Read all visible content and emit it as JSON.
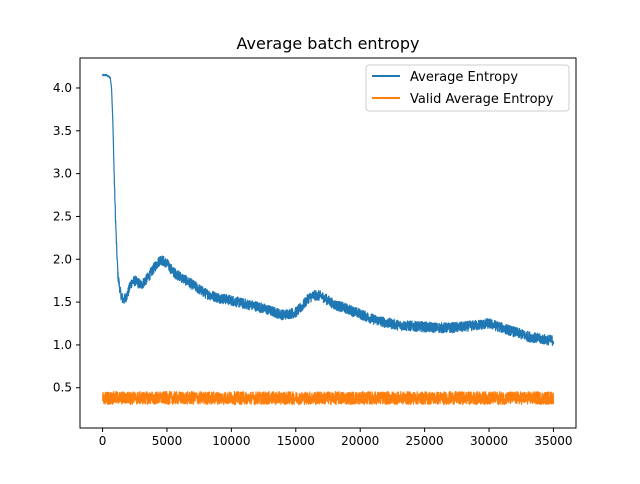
{
  "chart_data": {
    "type": "line",
    "title": "Average batch entropy",
    "xlabel": "",
    "ylabel": "",
    "xlim": [
      -1750,
      36750
    ],
    "ylim": [
      0.03,
      4.35
    ],
    "xticks": [
      0,
      5000,
      10000,
      15000,
      20000,
      25000,
      30000,
      35000
    ],
    "xtick_labels": [
      "0",
      "5000",
      "10000",
      "15000",
      "20000",
      "25000",
      "30000",
      "35000"
    ],
    "yticks": [
      0.5,
      1.0,
      1.5,
      2.0,
      2.5,
      3.0,
      3.5,
      4.0
    ],
    "ytick_labels": [
      "0.5",
      "1.0",
      "1.5",
      "2.0",
      "2.5",
      "3.0",
      "3.5",
      "4.0"
    ],
    "grid": false,
    "legend_position": "top-right",
    "x_range": [
      0,
      35000
    ],
    "series": [
      {
        "name": "Average Entropy",
        "color": "#1f77b4",
        "noise_amplitude": 0.06,
        "x": [
          0,
          300,
          600,
          700,
          800,
          900,
          1000,
          1100,
          1200,
          1400,
          1600,
          1800,
          2000,
          2200,
          2500,
          3000,
          3500,
          4000,
          4500,
          5000,
          5500,
          6000,
          7000,
          8000,
          9000,
          10000,
          11000,
          12000,
          13000,
          14000,
          15000,
          15500,
          16000,
          16500,
          17000,
          17500,
          18000,
          19000,
          20000,
          21000,
          22000,
          23000,
          24000,
          25000,
          26000,
          27000,
          28000,
          29000,
          30000,
          31000,
          32000,
          33000,
          34000,
          35000
        ],
        "values": [
          4.15,
          4.15,
          4.12,
          4.0,
          3.6,
          3.0,
          2.5,
          2.1,
          1.8,
          1.6,
          1.52,
          1.55,
          1.62,
          1.72,
          1.75,
          1.7,
          1.78,
          1.9,
          2.0,
          1.95,
          1.85,
          1.8,
          1.7,
          1.6,
          1.55,
          1.52,
          1.48,
          1.45,
          1.4,
          1.35,
          1.38,
          1.45,
          1.55,
          1.58,
          1.57,
          1.52,
          1.47,
          1.42,
          1.36,
          1.3,
          1.26,
          1.23,
          1.22,
          1.21,
          1.2,
          1.2,
          1.21,
          1.23,
          1.25,
          1.2,
          1.15,
          1.1,
          1.07,
          1.05
        ]
      },
      {
        "name": "Valid Average Entropy",
        "color": "#ff7f0e",
        "noise_amplitude": 0.075,
        "x": [
          0,
          35000
        ],
        "values": [
          0.38,
          0.38
        ]
      }
    ]
  }
}
